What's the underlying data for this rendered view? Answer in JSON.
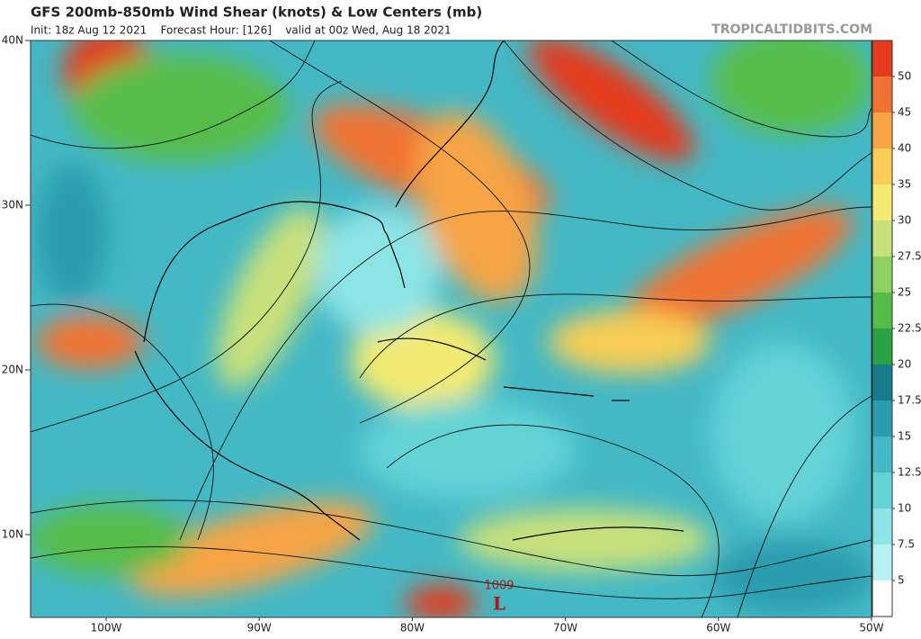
{
  "header": {
    "title": "GFS 200mb-850mb Wind Shear (knots) & Low Centers (mb)",
    "subtitle": "Init: 18z Aug 12 2021    Forecast Hour: [126]    valid at 00z Wed, Aug 18 2021",
    "brand": "TROPICALTIDBITS.COM"
  },
  "latitude_labels": [
    "40N",
    "30N",
    "20N",
    "10N"
  ],
  "longitude_labels": [
    "100W",
    "90W",
    "80W",
    "70W",
    "60W",
    "50W"
  ],
  "colorbar": {
    "labels": [
      "50",
      "45",
      "40",
      "35",
      "30",
      "27.5",
      "25",
      "22.5",
      "20",
      "17.5",
      "15",
      "12.5",
      "10",
      "7.5",
      "5"
    ],
    "colors": [
      "#e43a1d",
      "#f07232",
      "#f6a444",
      "#f8cd55",
      "#f2ea72",
      "#c8e07a",
      "#8fd063",
      "#56bc48",
      "#27a346",
      "#187a8a",
      "#2a9cad",
      "#44b9c5",
      "#63d3d5",
      "#8ee4e5",
      "#b9f0f0",
      "#ffffff"
    ]
  },
  "low_center": {
    "pressure": "1009",
    "symbol": "L"
  }
}
